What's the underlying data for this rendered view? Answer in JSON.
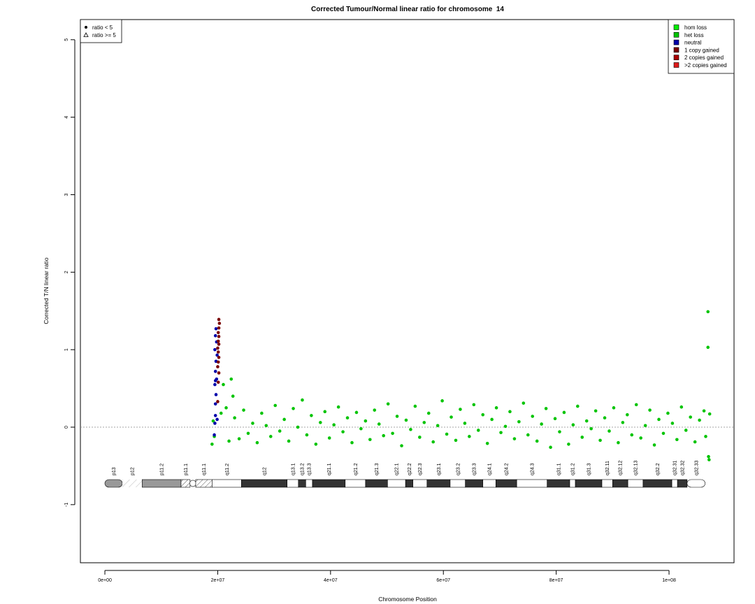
{
  "chart_data": {
    "type": "scatter",
    "title": "Corrected Tumour/Normal linear ratio for chromosome  14",
    "x_label": "Chromosome Position",
    "y_label": "Corrected T/N linear ratio",
    "xlim": [
      -4340000.0,
      111520000.0
    ],
    "ylim": [
      -1.75,
      5.26
    ],
    "xticks": [
      {
        "value": 0,
        "label": "0e+00"
      },
      {
        "value": 20000000.0,
        "label": "2e+07"
      },
      {
        "value": 40000000.0,
        "label": "4e+07"
      },
      {
        "value": 60000000.0,
        "label": "6e+07"
      },
      {
        "value": 80000000.0,
        "label": "8e+07"
      },
      {
        "value": 100000000.0,
        "label": "1e+08"
      }
    ],
    "yticks": [
      -1,
      0,
      1,
      2,
      3,
      4,
      5
    ],
    "hline": 0,
    "legend": "topright",
    "shape_legend": [
      "ratio < 5",
      "ratio >= 5"
    ],
    "series": [
      {
        "name": "hom loss",
        "color": "#00ee00",
        "x": [],
        "values": []
      },
      {
        "name": "het loss",
        "color": "#00c400",
        "x": [
          19000000.0,
          19200000.0,
          19400000.0,
          20600000.0,
          21000000.0,
          21500000.0,
          22000000.0,
          22400000.0,
          22700000.0,
          23000000.0,
          23800000.0,
          24600000.0,
          25400000.0,
          26200000.0,
          27000000.0,
          27800000.0,
          28600000.0,
          29400000.0,
          30200000.0,
          31000000.0,
          31800000.0,
          32600000.0,
          33400000.0,
          34200000.0,
          35000000.0,
          35800000.0,
          36600000.0,
          37400000.0,
          38200000.0,
          39000000.0,
          39800000.0,
          40600000.0,
          41400000.0,
          42200000.0,
          43000000.0,
          43800000.0,
          44600000.0,
          45400000.0,
          46200000.0,
          47000000.0,
          47800000.0,
          48600000.0,
          49400000.0,
          50200000.0,
          51000000.0,
          51800000.0,
          52600000.0,
          53400000.0,
          54200000.0,
          55000000.0,
          55800000.0,
          56600000.0,
          57400000.0,
          58200000.0,
          59000000.0,
          59800000.0,
          60600000.0,
          61400000.0,
          62200000.0,
          63000000.0,
          63800000.0,
          64600000.0,
          65400000.0,
          66200000.0,
          67000000.0,
          67800000.0,
          68600000.0,
          69400000.0,
          70200000.0,
          71000000.0,
          71800000.0,
          72600000.0,
          73400000.0,
          74200000.0,
          75000000.0,
          75800000.0,
          76600000.0,
          77400000.0,
          78200000.0,
          79000000.0,
          79800000.0,
          80600000.0,
          81400000.0,
          82200000.0,
          83000000.0,
          83800000.0,
          84600000.0,
          85400000.0,
          86200000.0,
          87000000.0,
          87800000.0,
          88600000.0,
          89400000.0,
          90200000.0,
          91000000.0,
          91800000.0,
          92600000.0,
          93400000.0,
          94200000.0,
          95000000.0,
          95800000.0,
          96600000.0,
          97400000.0,
          98200000.0,
          99000000.0,
          99800000.0,
          100600000.0,
          101400000.0,
          102200000.0,
          103000000.0,
          103800000.0,
          104600000.0,
          105400000.0,
          106200000.0,
          106900000.0,
          106900000.0,
          107000000.0,
          107100000.0,
          106500000.0,
          107200000.0
        ],
        "values": [
          -0.22,
          0.08,
          -0.12,
          0.18,
          0.55,
          0.25,
          -0.18,
          0.62,
          0.4,
          0.12,
          -0.15,
          0.22,
          -0.08,
          0.05,
          -0.2,
          0.18,
          0.02,
          -0.12,
          0.28,
          -0.05,
          0.1,
          -0.18,
          0.24,
          0.0,
          0.35,
          -0.1,
          0.15,
          -0.22,
          0.06,
          0.2,
          -0.14,
          0.03,
          0.26,
          -0.06,
          0.12,
          -0.2,
          0.19,
          -0.02,
          0.08,
          -0.16,
          0.22,
          0.04,
          -0.11,
          0.3,
          -0.08,
          0.14,
          -0.24,
          0.09,
          -0.03,
          0.27,
          -0.13,
          0.06,
          0.18,
          -0.19,
          0.02,
          0.34,
          -0.09,
          0.13,
          -0.17,
          0.23,
          0.05,
          -0.12,
          0.29,
          -0.04,
          0.16,
          -0.21,
          0.1,
          0.25,
          -0.07,
          0.01,
          0.2,
          -0.15,
          0.07,
          0.31,
          -0.1,
          0.14,
          -0.18,
          0.04,
          0.24,
          -0.26,
          0.11,
          -0.06,
          0.19,
          -0.22,
          0.03,
          0.27,
          -0.13,
          0.08,
          -0.02,
          0.21,
          -0.17,
          0.12,
          -0.05,
          0.25,
          -0.2,
          0.06,
          0.16,
          -0.1,
          0.29,
          -0.14,
          0.02,
          0.22,
          -0.23,
          0.1,
          -0.08,
          0.18,
          0.05,
          -0.16,
          0.26,
          -0.04,
          0.13,
          -0.19,
          0.09,
          0.21,
          1.49,
          1.03,
          -0.38,
          -0.42,
          -0.12,
          0.17
        ]
      },
      {
        "name": "neutral",
        "color": "#0000aa",
        "x": [
          19400000.0,
          19500000.0,
          19600000.0,
          19600000.0,
          19700000.0,
          19500000.0,
          19800000.0,
          19600000.0,
          19700000.0,
          19900000.0,
          19500000.0,
          19800000.0,
          19600000.0,
          19700000.0,
          19900000.0,
          19600000.0
        ],
        "values": [
          -0.1,
          0.05,
          0.15,
          0.3,
          0.42,
          0.55,
          0.62,
          0.72,
          0.85,
          0.93,
          1.0,
          1.1,
          1.18,
          1.27,
          0.1,
          0.6
        ]
      },
      {
        "name": "1 copy gained",
        "color": "#7a0000",
        "x": [
          20000000.0,
          20100000.0,
          20200000.0,
          20000000.0,
          20100000.0,
          20200000.0,
          20100000.0,
          20000000.0,
          20200000.0,
          20100000.0,
          20200000.0,
          20100000.0,
          20200000.0,
          20300000.0,
          20200000.0
        ],
        "values": [
          0.33,
          0.58,
          0.7,
          0.78,
          0.84,
          0.9,
          0.97,
          1.02,
          1.07,
          1.11,
          1.17,
          1.22,
          1.28,
          1.34,
          1.39
        ]
      },
      {
        "name": "2 copies gained",
        "color": "#aa0000",
        "x": [],
        "values": []
      },
      {
        "name": ">2 copies gained",
        "color": "#dd1a1a",
        "x": [],
        "values": []
      }
    ],
    "bands": [
      {
        "label": "p13",
        "start": 0,
        "end": 3100000.0,
        "stain": "gvar"
      },
      {
        "label": "p12",
        "start": 3100000.0,
        "end": 6600000.0,
        "stain": "stalk"
      },
      {
        "label": "p11.2",
        "start": 6600000.0,
        "end": 13500000.0,
        "stain": "gvar"
      },
      {
        "label": "p11.1",
        "start": 13500000.0,
        "end": 15100000.0,
        "stain": "acen"
      },
      {
        "label": "q11.1",
        "start": 16100000.0,
        "end": 19000000.0,
        "stain": "acen"
      },
      {
        "label": "q11.2",
        "start": 19000000.0,
        "end": 24200000.0,
        "stain": "gneg"
      },
      {
        "label": "q12",
        "start": 24200000.0,
        "end": 32300000.0,
        "stain": "gpos"
      },
      {
        "label": "q13.1",
        "start": 32300000.0,
        "end": 34300000.0,
        "stain": "gneg"
      },
      {
        "label": "q13.2",
        "start": 34300000.0,
        "end": 35600000.0,
        "stain": "gpos"
      },
      {
        "label": "q13.3",
        "start": 35600000.0,
        "end": 36800000.0,
        "stain": "gneg"
      },
      {
        "label": "q21.1",
        "start": 36800000.0,
        "end": 42600000.0,
        "stain": "gpos"
      },
      {
        "label": "q21.2",
        "start": 42600000.0,
        "end": 46200000.0,
        "stain": "gneg"
      },
      {
        "label": "q21.3",
        "start": 46200000.0,
        "end": 50100000.0,
        "stain": "gpos"
      },
      {
        "label": "q22.1",
        "start": 50100000.0,
        "end": 53300000.0,
        "stain": "gneg"
      },
      {
        "label": "q22.2",
        "start": 53300000.0,
        "end": 54600000.0,
        "stain": "gpos"
      },
      {
        "label": "q22.3",
        "start": 54600000.0,
        "end": 57100000.0,
        "stain": "gneg"
      },
      {
        "label": "q23.1",
        "start": 57100000.0,
        "end": 61200000.0,
        "stain": "gpos"
      },
      {
        "label": "q23.2",
        "start": 61200000.0,
        "end": 63900000.0,
        "stain": "gneg"
      },
      {
        "label": "q23.3",
        "start": 63900000.0,
        "end": 67000000.0,
        "stain": "gpos"
      },
      {
        "label": "q24.1",
        "start": 67000000.0,
        "end": 69300000.0,
        "stain": "gneg"
      },
      {
        "label": "q24.2",
        "start": 69300000.0,
        "end": 73000000.0,
        "stain": "gpos"
      },
      {
        "label": "q24.3",
        "start": 73000000.0,
        "end": 78400000.0,
        "stain": "gneg"
      },
      {
        "label": "q31.1",
        "start": 78400000.0,
        "end": 82400000.0,
        "stain": "gpos"
      },
      {
        "label": "q31.2",
        "start": 82400000.0,
        "end": 83400000.0,
        "stain": "gneg"
      },
      {
        "label": "q31.3",
        "start": 83400000.0,
        "end": 88100000.0,
        "stain": "gpos"
      },
      {
        "label": "q32.11",
        "start": 88100000.0,
        "end": 90000000.0,
        "stain": "gneg"
      },
      {
        "label": "q32.12",
        "start": 90000000.0,
        "end": 92700000.0,
        "stain": "gpos"
      },
      {
        "label": "q32.13",
        "start": 92700000.0,
        "end": 95400000.0,
        "stain": "gneg"
      },
      {
        "label": "q32.2",
        "start": 95400000.0,
        "end": 100500000.0,
        "stain": "gpos"
      },
      {
        "label": "q32.31",
        "start": 100500000.0,
        "end": 101500000.0,
        "stain": "gneg"
      },
      {
        "label": "q32.32",
        "start": 101500000.0,
        "end": 103200000.0,
        "stain": "gpos"
      },
      {
        "label": "q32.33",
        "start": 103200000.0,
        "end": 106400000.0,
        "stain": "gneg"
      }
    ]
  }
}
